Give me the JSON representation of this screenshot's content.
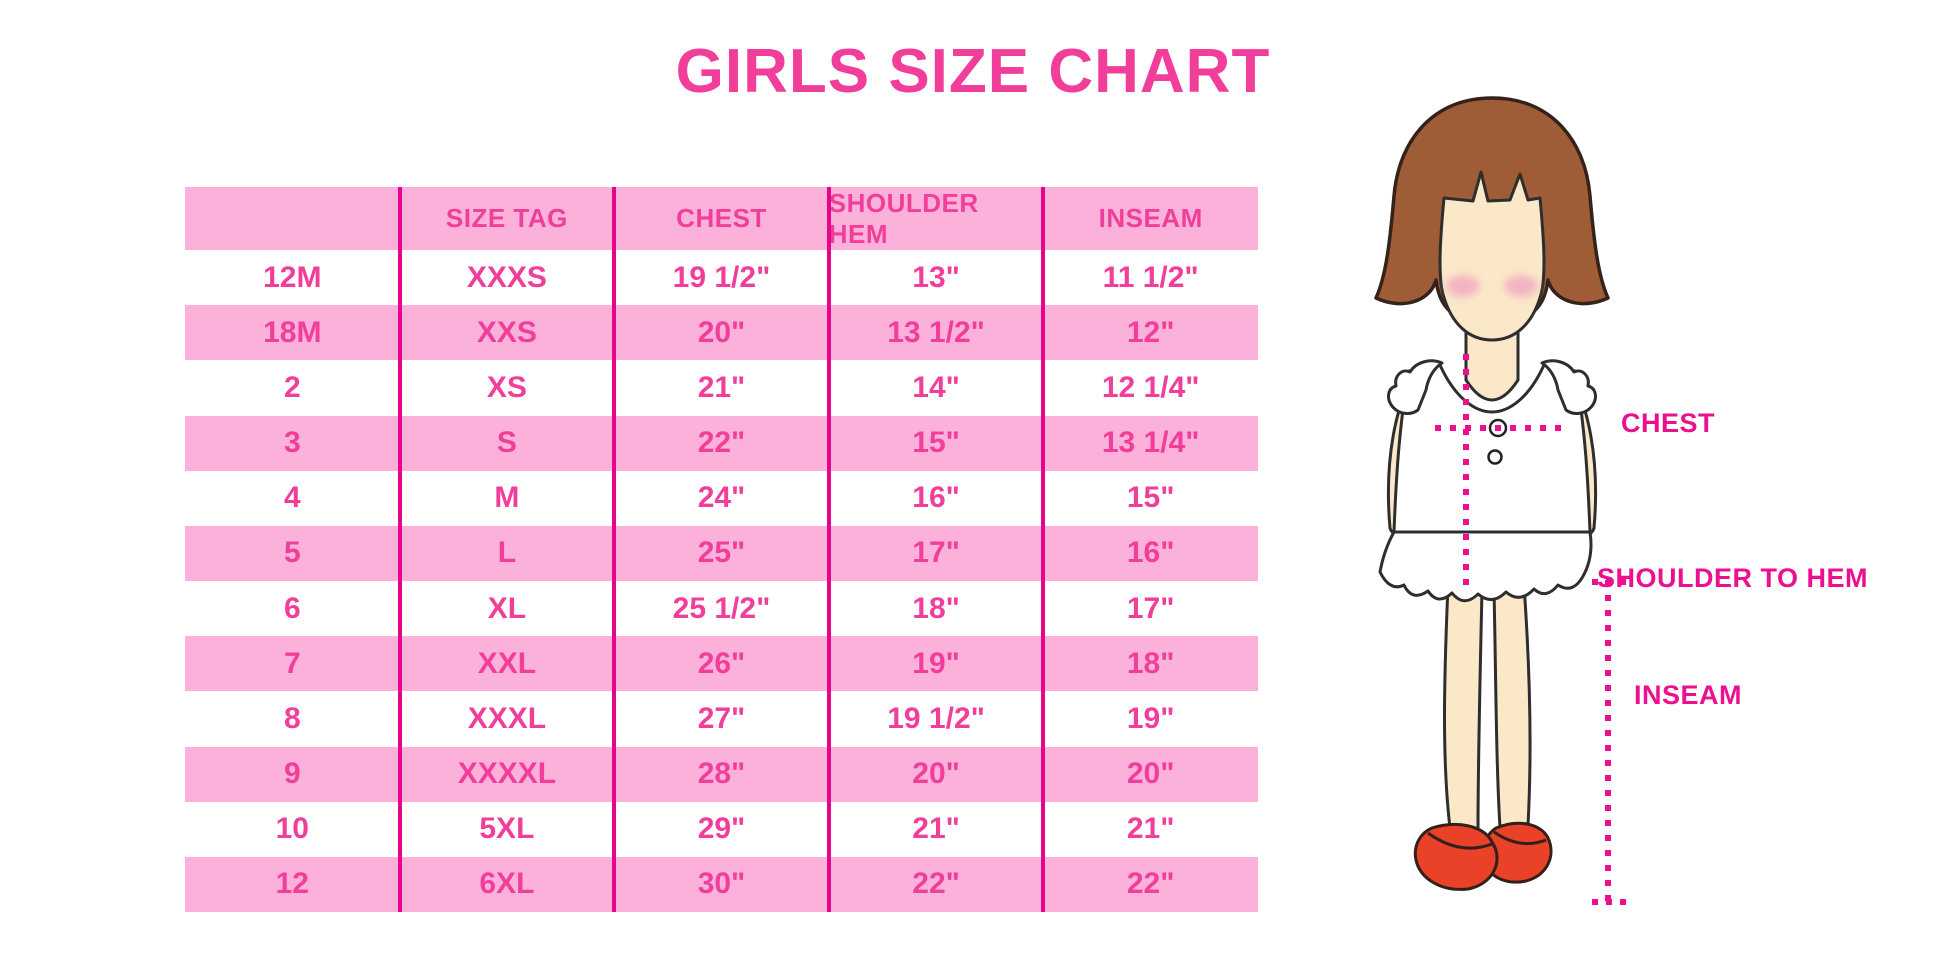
{
  "title": "GIRLS SIZE CHART",
  "colors": {
    "accent_pink_text": "#F23E9B",
    "row_pink": "#FBB1D9",
    "divider_magenta": "#E5068C",
    "label_magenta": "#EC1090",
    "hair_brown": "#9E5D37",
    "skin": "#FAE8C8",
    "shoe_red": "#EA4129"
  },
  "chart_data": {
    "type": "table",
    "title": "GIRLS SIZE CHART",
    "columns": [
      "",
      "SIZE TAG",
      "CHEST",
      "SHOULDER HEM",
      "INSEAM"
    ],
    "rows": [
      [
        "12M",
        "XXXS",
        "19 1/2\"",
        "13\"",
        "11 1/2\""
      ],
      [
        "18M",
        "XXS",
        "20\"",
        "13 1/2\"",
        "12\""
      ],
      [
        "2",
        "XS",
        "21\"",
        "14\"",
        "12 1/4\""
      ],
      [
        "3",
        "S",
        "22\"",
        "15\"",
        "13 1/4\""
      ],
      [
        "4",
        "M",
        "24\"",
        "16\"",
        "15\""
      ],
      [
        "5",
        "L",
        "25\"",
        "17\"",
        "16\""
      ],
      [
        "6",
        "XL",
        "25 1/2\"",
        "18\"",
        "17\""
      ],
      [
        "7",
        "XXL",
        "26\"",
        "19\"",
        "18\""
      ],
      [
        "8",
        "XXXL",
        "27\"",
        "19 1/2\"",
        "19\""
      ],
      [
        "9",
        "XXXXL",
        "28\"",
        "20\"",
        "20\""
      ],
      [
        "10",
        "5XL",
        "29\"",
        "21\"",
        "21\""
      ],
      [
        "12",
        "6XL",
        "30\"",
        "22\"",
        "22\""
      ]
    ],
    "layout_hints": {
      "row_striping": "header pink, then alternating white/pink starting white",
      "grid": "vertical magenta column dividers only"
    }
  },
  "figure": {
    "labels": {
      "chest": "CHEST",
      "shoulder_to_hem": "SHOULDER TO HEM",
      "inseam": "INSEAM"
    }
  }
}
